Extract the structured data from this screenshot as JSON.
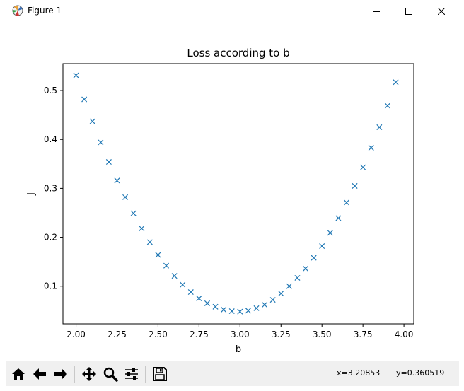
{
  "window": {
    "title": "Figure 1",
    "controls": {
      "minimize": "minimize-icon",
      "maximize": "maximize-icon",
      "close": "close-icon"
    }
  },
  "toolbar": {
    "buttons": [
      {
        "name": "home-button",
        "icon": "home-icon"
      },
      {
        "name": "back-button",
        "icon": "arrow-left-icon"
      },
      {
        "name": "forward-button",
        "icon": "arrow-right-icon"
      },
      {
        "name": "pan-button",
        "icon": "move-icon"
      },
      {
        "name": "zoom-button",
        "icon": "magnifier-icon"
      },
      {
        "name": "configure-subplots-button",
        "icon": "sliders-icon"
      },
      {
        "name": "save-button",
        "icon": "floppy-disk-icon"
      }
    ],
    "cursor": {
      "x": "x=3.20853",
      "y": "y=0.360519"
    }
  },
  "chart_data": {
    "type": "scatter",
    "title": "Loss according to b",
    "xlabel": "b",
    "ylabel": "J",
    "xlim": [
      1.92,
      4.06
    ],
    "ylim": [
      0.023,
      0.555
    ],
    "xticks": [
      2.0,
      2.25,
      2.5,
      2.75,
      3.0,
      3.25,
      3.5,
      3.75,
      4.0
    ],
    "xtick_labels": [
      "2.00",
      "2.25",
      "2.50",
      "2.75",
      "3.00",
      "3.25",
      "3.50",
      "3.75",
      "4.00"
    ],
    "yticks": [
      0.1,
      0.2,
      0.3,
      0.4,
      0.5
    ],
    "ytick_labels": [
      "0.1",
      "0.2",
      "0.3",
      "0.4",
      "0.5"
    ],
    "marker": "x",
    "color": "#1f77b4",
    "grid": false,
    "series": [
      {
        "x": [
          2.0,
          2.05,
          2.1,
          2.15,
          2.2,
          2.25,
          2.3,
          2.35,
          2.4,
          2.45,
          2.5,
          2.55,
          2.6,
          2.65,
          2.7,
          2.75,
          2.8,
          2.85,
          2.9,
          2.95,
          3.0,
          3.05,
          3.1,
          3.15,
          3.2,
          3.25,
          3.3,
          3.35,
          3.4,
          3.45,
          3.5,
          3.55,
          3.6,
          3.65,
          3.7,
          3.75,
          3.8,
          3.85,
          3.9,
          3.95
        ],
        "y": [
          0.531,
          0.482,
          0.437,
          0.394,
          0.354,
          0.316,
          0.282,
          0.249,
          0.218,
          0.19,
          0.164,
          0.142,
          0.121,
          0.103,
          0.088,
          0.075,
          0.065,
          0.058,
          0.052,
          0.049,
          0.048,
          0.05,
          0.055,
          0.062,
          0.072,
          0.085,
          0.1,
          0.117,
          0.136,
          0.158,
          0.182,
          0.209,
          0.239,
          0.271,
          0.305,
          0.343,
          0.383,
          0.425,
          0.469,
          0.517
        ]
      }
    ]
  }
}
